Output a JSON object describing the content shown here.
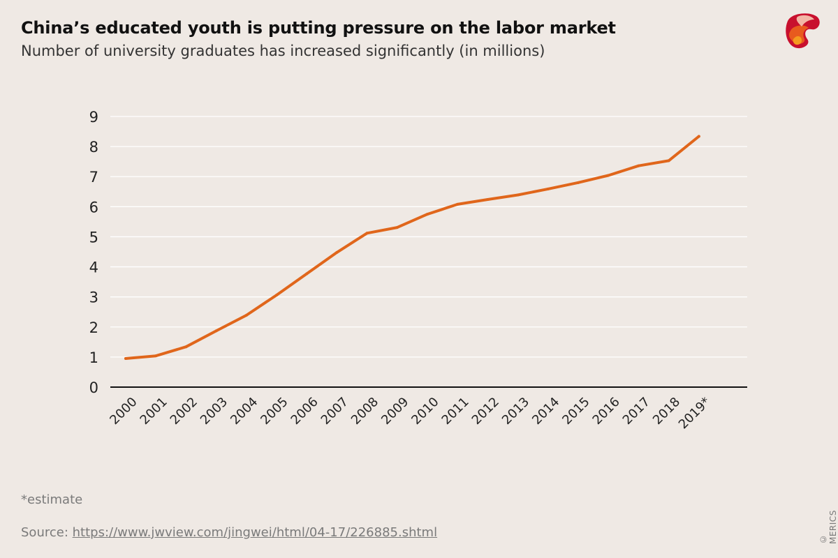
{
  "title": "China’s educated youth is putting pressure on the labor market",
  "subtitle": "Number of university graduates has increased significantly (in millions)",
  "footnote": "*estimate",
  "source": {
    "label": "Source:",
    "link_text": "https://www.jwview.com/jingwei/html/04-17/226885.shtml"
  },
  "copyright": "© MERICS",
  "colors": {
    "line": "#e0661b",
    "background": "#efe9e4",
    "gridline": "#ffffff",
    "axis": "#111111"
  },
  "chart_data": {
    "type": "line",
    "title": "China’s educated youth is putting pressure on the labor market",
    "subtitle": "Number of university graduates has increased significantly (in millions)",
    "xlabel": "",
    "ylabel": "",
    "categories": [
      "2000",
      "2001",
      "2002",
      "2003",
      "2004",
      "2005",
      "2006",
      "2007",
      "2008",
      "2009",
      "2010",
      "2011",
      "2012",
      "2013",
      "2014",
      "2015",
      "2016",
      "2017",
      "2018",
      "2019*"
    ],
    "values": [
      0.95,
      1.04,
      1.34,
      1.87,
      2.39,
      3.06,
      3.77,
      4.48,
      5.12,
      5.31,
      5.75,
      6.08,
      6.24,
      6.39,
      6.59,
      6.8,
      7.04,
      7.36,
      7.53,
      8.34
    ],
    "ylim": [
      0,
      9
    ],
    "yticks": [
      "0",
      "1",
      "2",
      "3",
      "4",
      "5",
      "6",
      "7",
      "8",
      "9"
    ],
    "grid": true,
    "legend": "none"
  }
}
